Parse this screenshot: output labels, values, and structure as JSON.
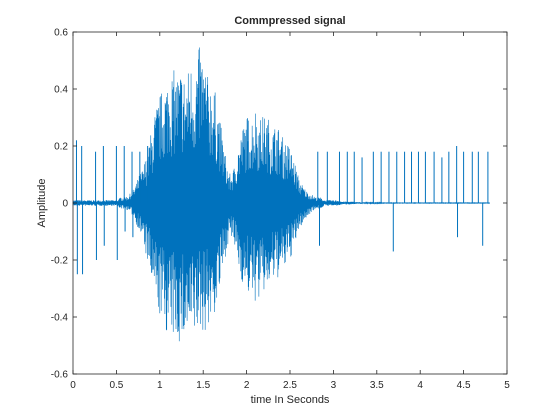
{
  "chart_data": {
    "type": "line",
    "title": "Commpressed signal",
    "xlabel": "time In Seconds",
    "ylabel": "Amplitude",
    "xlim": [
      0,
      5
    ],
    "ylim": [
      -0.6,
      0.6
    ],
    "xticks": [
      0,
      0.5,
      1,
      1.5,
      2,
      2.5,
      3,
      3.5,
      4,
      4.5,
      5
    ],
    "xtick_labels": [
      "0",
      "0.5",
      "1",
      "1.5",
      "2",
      "2.5",
      "3",
      "3.5",
      "4",
      "4.5",
      "5"
    ],
    "yticks": [
      -0.6,
      -0.4,
      -0.2,
      0,
      0.2,
      0.4,
      0.6
    ],
    "ytick_labels": [
      "-0.6",
      "-0.4",
      "-0.2",
      "0",
      "0.2",
      "0.4",
      "0.6"
    ],
    "grid": false,
    "line_color": "#0072BD",
    "series": [
      {
        "x": [
          0,
          0.05,
          0.1,
          0.15,
          0.2,
          0.25,
          0.3,
          0.35,
          0.4,
          0.45,
          0.5,
          0.55,
          0.6,
          0.65,
          0.7,
          0.75,
          0.8,
          0.85,
          0.9,
          0.95,
          1.0,
          1.05,
          1.1,
          1.15,
          1.2,
          1.25,
          1.3,
          1.35,
          1.4,
          1.45,
          1.5,
          1.55,
          1.6,
          1.65,
          1.7,
          1.75,
          1.8,
          1.85,
          1.9,
          1.95,
          2.0,
          2.05,
          2.1,
          2.15,
          2.2,
          2.25,
          2.3,
          2.35,
          2.4,
          2.45,
          2.5,
          2.55,
          2.6,
          2.65,
          2.7,
          2.75,
          2.8,
          2.85,
          2.9,
          2.95,
          3.0,
          3.05,
          3.1,
          3.15,
          3.2,
          3.25,
          3.3,
          3.4,
          3.5,
          3.6,
          3.7,
          3.8,
          3.9,
          4.0,
          4.1,
          4.2,
          4.3,
          4.4,
          4.5,
          4.6,
          4.7,
          4.8
        ],
        "upper": [
          0.01,
          0.01,
          0.01,
          0.01,
          0.01,
          0.01,
          0.01,
          0.01,
          0.01,
          0.01,
          0.01,
          0.02,
          0.02,
          0.03,
          0.05,
          0.09,
          0.12,
          0.18,
          0.25,
          0.33,
          0.38,
          0.42,
          0.45,
          0.47,
          0.46,
          0.48,
          0.44,
          0.5,
          0.47,
          0.55,
          0.53,
          0.45,
          0.43,
          0.38,
          0.28,
          0.18,
          0.1,
          0.12,
          0.2,
          0.26,
          0.31,
          0.3,
          0.34,
          0.3,
          0.31,
          0.3,
          0.27,
          0.28,
          0.24,
          0.22,
          0.2,
          0.15,
          0.09,
          0.06,
          0.04,
          0.03,
          0.02,
          0.02,
          0.01,
          0.01,
          0.01,
          0.01,
          0.005,
          0.005,
          0.005,
          0.004,
          0.003,
          0.002,
          0.002,
          0.001,
          0.001,
          0.001,
          0.001,
          0.001,
          0.001,
          0.001,
          0.001,
          0.001,
          0.001,
          0.001,
          0.001,
          0.001
        ],
        "lower": [
          -0.01,
          -0.01,
          -0.01,
          -0.01,
          -0.01,
          -0.01,
          -0.01,
          -0.01,
          -0.01,
          -0.01,
          -0.01,
          -0.02,
          -0.02,
          -0.03,
          -0.05,
          -0.09,
          -0.13,
          -0.2,
          -0.28,
          -0.36,
          -0.4,
          -0.44,
          -0.47,
          -0.48,
          -0.49,
          -0.5,
          -0.48,
          -0.5,
          -0.48,
          -0.45,
          -0.46,
          -0.44,
          -0.42,
          -0.38,
          -0.3,
          -0.2,
          -0.12,
          -0.14,
          -0.22,
          -0.28,
          -0.32,
          -0.33,
          -0.35,
          -0.34,
          -0.32,
          -0.3,
          -0.28,
          -0.27,
          -0.25,
          -0.23,
          -0.2,
          -0.16,
          -0.1,
          -0.07,
          -0.05,
          -0.03,
          -0.02,
          -0.02,
          -0.01,
          -0.01,
          -0.01,
          -0.01,
          -0.005,
          -0.005,
          -0.005,
          -0.004,
          -0.003,
          -0.002,
          -0.002,
          -0.001,
          -0.001,
          -0.001,
          -0.001,
          -0.001,
          -0.001,
          -0.001,
          -0.001,
          -0.001,
          -0.001,
          -0.001,
          -0.001,
          -0.001
        ]
      }
    ],
    "spikes": [
      {
        "x": 0.04,
        "y": 0.22
      },
      {
        "x": 0.05,
        "y": -0.25
      },
      {
        "x": 0.1,
        "y": 0.2
      },
      {
        "x": 0.11,
        "y": -0.25
      },
      {
        "x": 0.26,
        "y": 0.18
      },
      {
        "x": 0.27,
        "y": -0.2
      },
      {
        "x": 0.35,
        "y": 0.2
      },
      {
        "x": 0.36,
        "y": -0.15
      },
      {
        "x": 0.5,
        "y": 0.2
      },
      {
        "x": 0.51,
        "y": -0.2
      },
      {
        "x": 0.59,
        "y": 0.2
      },
      {
        "x": 0.6,
        "y": -0.1
      },
      {
        "x": 0.68,
        "y": 0.18
      },
      {
        "x": 0.69,
        "y": -0.12
      },
      {
        "x": 0.77,
        "y": 0.18
      },
      {
        "x": 0.86,
        "y": 0.2
      },
      {
        "x": 2.82,
        "y": 0.18
      },
      {
        "x": 2.84,
        "y": -0.15
      },
      {
        "x": 2.93,
        "y": 0.18
      },
      {
        "x": 3.07,
        "y": 0.18
      },
      {
        "x": 3.16,
        "y": 0.18
      },
      {
        "x": 3.24,
        "y": 0.18
      },
      {
        "x": 3.33,
        "y": 0.16
      },
      {
        "x": 3.46,
        "y": 0.18
      },
      {
        "x": 3.55,
        "y": 0.18
      },
      {
        "x": 3.64,
        "y": 0.18
      },
      {
        "x": 3.69,
        "y": -0.17
      },
      {
        "x": 3.73,
        "y": 0.18
      },
      {
        "x": 3.82,
        "y": 0.18
      },
      {
        "x": 3.9,
        "y": 0.18
      },
      {
        "x": 3.98,
        "y": 0.18
      },
      {
        "x": 4.06,
        "y": 0.18
      },
      {
        "x": 4.16,
        "y": 0.18
      },
      {
        "x": 4.25,
        "y": 0.16
      },
      {
        "x": 4.33,
        "y": 0.18
      },
      {
        "x": 4.42,
        "y": 0.2
      },
      {
        "x": 4.43,
        "y": -0.12
      },
      {
        "x": 4.5,
        "y": 0.18
      },
      {
        "x": 4.6,
        "y": 0.18
      },
      {
        "x": 4.67,
        "y": 0.18
      },
      {
        "x": 4.72,
        "y": -0.15
      },
      {
        "x": 4.78,
        "y": 0.18
      }
    ]
  }
}
